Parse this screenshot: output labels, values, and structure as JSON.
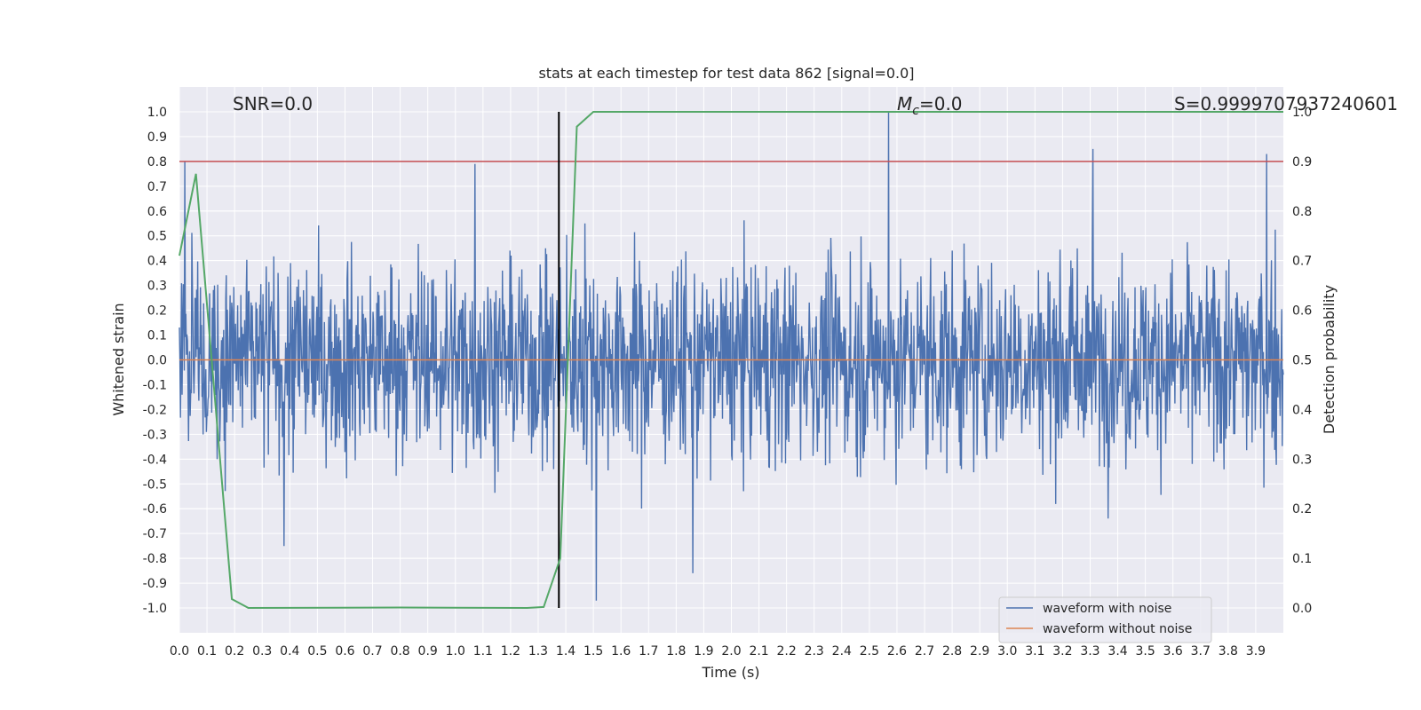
{
  "chart_data": {
    "type": "line",
    "title": "stats at each timestep for test data 862 [signal=0.0]",
    "xlabel": "Time (s)",
    "ylabel": "Whitened strain",
    "y2label": "Detection probability",
    "xlim": [
      0.0,
      4.0
    ],
    "ylim": [
      -1.1,
      1.1
    ],
    "y2lim": [
      -0.05,
      1.05
    ],
    "xticks": [
      "0.0",
      "0.1",
      "0.2",
      "0.3",
      "0.4",
      "0.5",
      "0.6",
      "0.7",
      "0.8",
      "0.9",
      "1.0",
      "1.1",
      "1.2",
      "1.3",
      "1.4",
      "1.5",
      "1.6",
      "1.7",
      "1.8",
      "1.9",
      "2.0",
      "2.1",
      "2.2",
      "2.3",
      "2.4",
      "2.5",
      "2.6",
      "2.7",
      "2.8",
      "2.9",
      "3.0",
      "3.1",
      "3.2",
      "3.3",
      "3.4",
      "3.5",
      "3.6",
      "3.7",
      "3.8",
      "3.9"
    ],
    "yticks": [
      "1.0",
      "0.9",
      "0.8",
      "0.7",
      "0.6",
      "0.5",
      "0.4",
      "0.3",
      "0.2",
      "0.1",
      "0.0",
      "-0.1",
      "-0.2",
      "-0.3",
      "-0.4",
      "-0.5",
      "-0.6",
      "-0.7",
      "-0.8",
      "-0.9",
      "-1.0"
    ],
    "y2ticks": [
      "1.0",
      "0.9",
      "0.8",
      "0.7",
      "0.6",
      "0.5",
      "0.4",
      "0.3",
      "0.2",
      "0.1",
      "0.0"
    ],
    "annotations": {
      "snr": "SNR=0.0",
      "mc_symbol": "M",
      "mc_sub": "c",
      "mc_value": "=0.0",
      "s": "S=0.9999707937240601"
    },
    "series": [
      {
        "name": "waveform with noise",
        "color": "#4c72b0",
        "generated": true,
        "approx_amplitude_std": 0.2,
        "spikes": [
          [
            0.02,
            0.8
          ],
          [
            1.07,
            0.79
          ],
          [
            1.47,
            0.55
          ],
          [
            1.51,
            -0.97
          ],
          [
            2.57,
            1.0
          ],
          [
            3.31,
            0.85
          ],
          [
            3.94,
            0.83
          ],
          [
            0.38,
            -0.75
          ],
          [
            1.86,
            -0.86
          ]
        ]
      },
      {
        "name": "waveform without noise",
        "color": "#dd8452",
        "x": [
          0.0,
          4.0
        ],
        "y": [
          0.0,
          0.0
        ]
      },
      {
        "name": "Detection probability",
        "color": "#55a868",
        "axis": "y2",
        "x": [
          0.0,
          0.06,
          0.19,
          0.25,
          0.8,
          1.26,
          1.32,
          1.38,
          1.44,
          1.5,
          4.0
        ],
        "y": [
          0.71,
          0.875,
          0.018,
          0.0,
          0.001,
          0.0,
          0.002,
          0.1,
          0.97,
          1.0,
          1.0
        ]
      }
    ],
    "threshold_line": {
      "y2": 0.9,
      "color": "#c44e52"
    },
    "vline": {
      "x": 1.375,
      "color": "#000000"
    },
    "legend_position": "lower-right",
    "grid": true,
    "background": "#eaeaf2"
  }
}
